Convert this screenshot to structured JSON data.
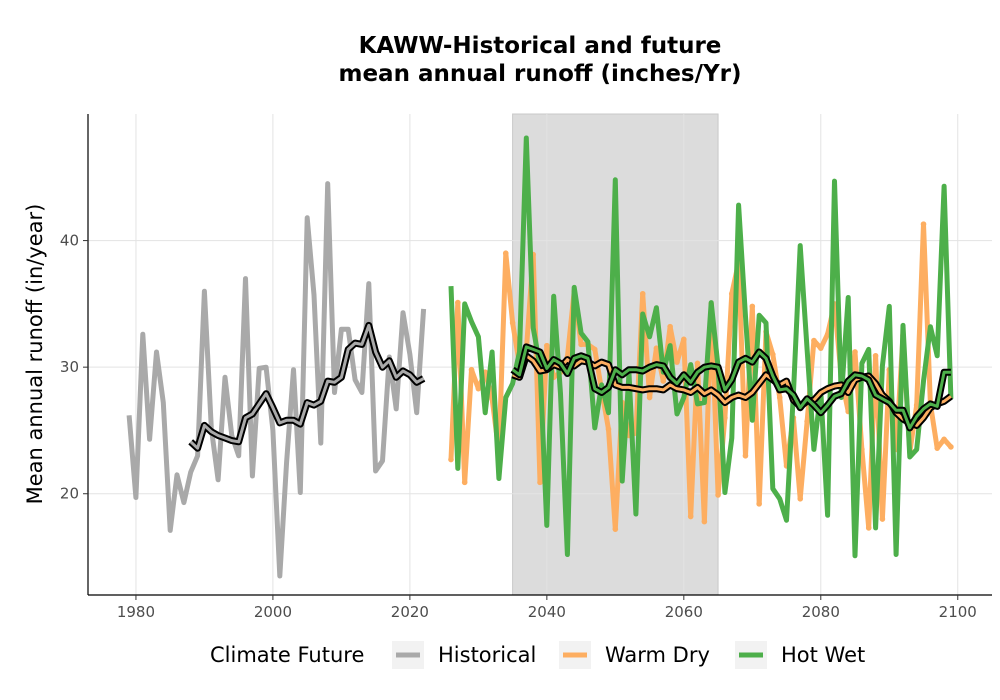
{
  "chart_data": {
    "type": "line",
    "title_line1": "KAWW-Historical and future",
    "title_line2": "mean annual runoff (inches/Yr)",
    "xlabel": "",
    "ylabel": "Mean annual runoff (in/year)",
    "xlim": [
      1973,
      2105
    ],
    "ylim": [
      12,
      50
    ],
    "x_ticks": [
      1980,
      2000,
      2020,
      2040,
      2060,
      2080,
      2100
    ],
    "y_ticks": [
      20,
      30,
      40
    ],
    "grid": true,
    "shaded_period": [
      2035,
      2065
    ],
    "legend": {
      "title": "Climate Future",
      "position": "bottom",
      "entries": [
        {
          "label": "Historical",
          "color": "#a9a9a9"
        },
        {
          "label": "Warm Dry",
          "color": "#fdae61"
        },
        {
          "label": "Hot Wet",
          "color": "#4daf4a"
        }
      ]
    },
    "series": [
      {
        "name": "Historical",
        "color": "#a9a9a9",
        "x": [
          1979,
          1980,
          1981,
          1982,
          1983,
          1984,
          1985,
          1986,
          1987,
          1988,
          1989,
          1990,
          1991,
          1992,
          1993,
          1994,
          1995,
          1996,
          1997,
          1998,
          1999,
          2000,
          2001,
          2002,
          2003,
          2004,
          2005,
          2006,
          2007,
          2008,
          2009,
          2010,
          2011,
          2012,
          2013,
          2014,
          2015,
          2016,
          2017,
          2018,
          2019,
          2020,
          2021,
          2022
        ],
        "values": [
          26.2,
          19.7,
          32.6,
          24.3,
          31.2,
          27.2,
          17.1,
          21.5,
          19.3,
          21.7,
          23.0,
          36.0,
          25.2,
          21.1,
          29.2,
          24.6,
          23.0,
          37.0,
          21.4,
          29.9,
          30.0,
          25.0,
          13.5,
          22.5,
          29.8,
          20.1,
          41.8,
          35.7,
          24.0,
          44.5,
          28.0,
          33.0,
          33.0,
          29.0,
          28.0,
          36.6,
          21.8,
          22.6,
          30.8,
          26.7,
          34.3,
          31.0,
          26.4,
          34.6
        ]
      },
      {
        "name": "Historical trend",
        "color": "#000000",
        "x": [
          1988,
          1989,
          1990,
          1991,
          1992,
          1993,
          1994,
          1995,
          1996,
          1997,
          1998,
          1999,
          2000,
          2001,
          2002,
          2003,
          2004,
          2005,
          2006,
          2007,
          2008,
          2009,
          2010,
          2011,
          2012,
          2013,
          2014,
          2015,
          2016,
          2017,
          2018,
          2019,
          2020,
          2021,
          2022
        ],
        "values": [
          24.1,
          23.6,
          25.4,
          24.9,
          24.6,
          24.4,
          24.2,
          24.1,
          26.0,
          26.3,
          27.1,
          27.9,
          26.8,
          25.6,
          25.8,
          25.8,
          25.5,
          27.2,
          27.0,
          27.3,
          28.9,
          28.8,
          29.2,
          31.4,
          31.9,
          31.8,
          33.3,
          31.2,
          30.0,
          30.5,
          29.2,
          29.7,
          29.4,
          28.8,
          29.1
        ]
      },
      {
        "name": "Warm Dry",
        "color": "#fdae61",
        "x": [
          2026,
          2027,
          2028,
          2029,
          2030,
          2031,
          2032,
          2033,
          2034,
          2035,
          2036,
          2037,
          2038,
          2039,
          2040,
          2041,
          2042,
          2043,
          2044,
          2045,
          2046,
          2047,
          2048,
          2049,
          2050,
          2051,
          2052,
          2053,
          2054,
          2055,
          2056,
          2057,
          2058,
          2059,
          2060,
          2061,
          2062,
          2063,
          2064,
          2065,
          2066,
          2067,
          2068,
          2069,
          2070,
          2071,
          2072,
          2073,
          2074,
          2075,
          2076,
          2077,
          2078,
          2079,
          2080,
          2081,
          2082,
          2083,
          2084,
          2085,
          2086,
          2087,
          2088,
          2089,
          2090,
          2091,
          2092,
          2093,
          2094,
          2095,
          2096,
          2097,
          2098,
          2099
        ],
        "values": [
          22.7,
          35.1,
          20.9,
          29.8,
          28.3,
          29.6,
          27.5,
          23.3,
          39.0,
          33.5,
          30.2,
          31.3,
          38.9,
          20.9,
          31.7,
          29.2,
          29.6,
          30.8,
          36.0,
          31.8,
          31.8,
          31.4,
          28.2,
          25.1,
          17.2,
          27.2,
          24.6,
          24.8,
          35.8,
          27.6,
          31.5,
          28.9,
          33.2,
          30.4,
          32.2,
          18.2,
          30.3,
          17.8,
          35.0,
          19.9,
          26.0,
          35.8,
          38.3,
          23.0,
          34.8,
          19.2,
          32.8,
          31.0,
          27.6,
          22.2,
          26.0,
          19.6,
          25.7,
          32.1,
          31.5,
          32.6,
          35.0,
          29.2,
          26.5,
          31.2,
          23.5,
          17.3,
          30.9,
          18.0,
          29.8,
          23.5,
          32.5,
          23.3,
          27.0,
          41.3,
          27.1,
          23.6,
          24.3,
          23.7
        ]
      },
      {
        "name": "Warm Dry trend",
        "color": "#000000",
        "x": [
          2035,
          2036,
          2037,
          2038,
          2039,
          2040,
          2041,
          2042,
          2043,
          2044,
          2045,
          2046,
          2047,
          2048,
          2049,
          2050,
          2051,
          2052,
          2053,
          2054,
          2055,
          2056,
          2057,
          2058,
          2059,
          2060,
          2061,
          2062,
          2063,
          2064,
          2065,
          2066,
          2067,
          2068,
          2069,
          2070,
          2071,
          2072,
          2073,
          2074,
          2075,
          2076,
          2077,
          2078,
          2079,
          2080,
          2081,
          2082,
          2083,
          2084,
          2085,
          2086,
          2087,
          2088,
          2089,
          2090,
          2091,
          2092,
          2093,
          2094,
          2095,
          2096,
          2097,
          2098,
          2099
        ],
        "values": [
          29.4,
          29.2,
          30.9,
          30.5,
          29.7,
          29.8,
          30.2,
          30.0,
          30.6,
          30.1,
          30.5,
          30.4,
          30.1,
          30.4,
          30.2,
          28.6,
          28.4,
          28.4,
          28.3,
          28.2,
          28.3,
          28.3,
          28.2,
          28.6,
          28.3,
          28.2,
          28.0,
          28.4,
          27.9,
          28.2,
          27.8,
          27.2,
          27.6,
          27.8,
          27.6,
          28.0,
          28.7,
          29.4,
          29.0,
          28.6,
          28.9,
          27.4,
          26.9,
          27.3,
          27.4,
          28.0,
          28.3,
          28.5,
          28.6,
          28.0,
          29.0,
          29.2,
          29.3,
          28.7,
          27.8,
          27.3,
          26.4,
          25.9,
          25.6,
          25.4,
          26.0,
          26.8,
          27.1,
          27.3,
          27.7
        ]
      },
      {
        "name": "Hot Wet",
        "color": "#4daf4a",
        "x": [
          2026,
          2027,
          2028,
          2029,
          2030,
          2031,
          2032,
          2033,
          2034,
          2035,
          2036,
          2037,
          2038,
          2039,
          2040,
          2041,
          2042,
          2043,
          2044,
          2045,
          2046,
          2047,
          2048,
          2049,
          2050,
          2051,
          2052,
          2053,
          2054,
          2055,
          2056,
          2057,
          2058,
          2059,
          2060,
          2061,
          2062,
          2063,
          2064,
          2065,
          2066,
          2067,
          2068,
          2069,
          2070,
          2071,
          2072,
          2073,
          2074,
          2075,
          2076,
          2077,
          2078,
          2079,
          2080,
          2081,
          2082,
          2083,
          2084,
          2085,
          2086,
          2087,
          2088,
          2089,
          2090,
          2091,
          2092,
          2093,
          2094,
          2095,
          2096,
          2097,
          2098,
          2099
        ],
        "values": [
          36.4,
          22.0,
          35.0,
          33.6,
          32.4,
          26.4,
          31.2,
          21.2,
          27.6,
          28.7,
          31.2,
          48.1,
          33.1,
          30.1,
          17.5,
          35.6,
          27.9,
          15.2,
          36.3,
          32.7,
          32.0,
          25.2,
          28.6,
          26.4,
          44.8,
          21.0,
          29.5,
          18.4,
          34.2,
          32.4,
          34.7,
          29.6,
          31.7,
          26.3,
          27.6,
          30.2,
          27.1,
          27.2,
          35.1,
          30.0,
          20.1,
          24.4,
          42.8,
          34.0,
          25.8,
          34.1,
          33.5,
          20.4,
          19.6,
          17.9,
          27.9,
          39.6,
          31.4,
          23.5,
          28.1,
          18.3,
          44.7,
          27.6,
          35.5,
          15.1,
          30.3,
          31.4,
          17.3,
          30.1,
          34.8,
          15.2,
          33.3,
          22.9,
          23.5,
          28.9,
          33.2,
          30.9,
          44.3,
          27.5
        ]
      },
      {
        "name": "Hot Wet trend",
        "color": "#000000",
        "x": [
          2035,
          2036,
          2037,
          2038,
          2039,
          2040,
          2041,
          2042,
          2043,
          2044,
          2045,
          2046,
          2047,
          2048,
          2049,
          2050,
          2051,
          2052,
          2053,
          2054,
          2055,
          2056,
          2057,
          2058,
          2059,
          2060,
          2061,
          2062,
          2063,
          2064,
          2065,
          2066,
          2067,
          2068,
          2069,
          2070,
          2071,
          2072,
          2073,
          2074,
          2075,
          2076,
          2077,
          2078,
          2079,
          2080,
          2081,
          2082,
          2083,
          2084,
          2085,
          2086,
          2087,
          2088,
          2089,
          2090,
          2091,
          2092,
          2093,
          2094,
          2095,
          2096,
          2097,
          2098,
          2099
        ],
        "values": [
          29.8,
          29.4,
          31.6,
          31.4,
          31.2,
          29.9,
          30.6,
          30.3,
          29.5,
          30.7,
          30.9,
          30.7,
          28.3,
          28.0,
          28.4,
          29.8,
          29.4,
          29.8,
          29.8,
          29.7,
          30.0,
          30.2,
          30.1,
          29.2,
          28.7,
          29.4,
          28.8,
          29.6,
          30.0,
          30.1,
          30.0,
          28.2,
          29.0,
          30.4,
          30.7,
          30.4,
          31.2,
          30.7,
          29.3,
          28.2,
          28.3,
          27.8,
          26.8,
          27.5,
          27.0,
          26.4,
          27.0,
          27.7,
          27.9,
          28.9,
          29.4,
          29.3,
          29.0,
          27.8,
          27.5,
          27.2,
          26.6,
          26.6,
          25.2,
          26.1,
          26.7,
          27.1,
          26.9,
          29.6,
          29.6
        ]
      }
    ]
  }
}
